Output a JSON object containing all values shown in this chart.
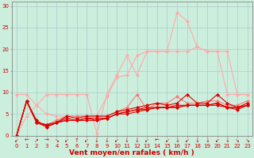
{
  "background_color": "#cceedd",
  "grid_color": "#aacccc",
  "xlabel": "Vent moyen/en rafales ( km/h )",
  "ylim": [
    0,
    31
  ],
  "yticks": [
    0,
    5,
    10,
    15,
    20,
    25,
    30
  ],
  "series": [
    {
      "color": "#ffaaaa",
      "linewidth": 0.8,
      "marker": "D",
      "markersize": 2,
      "data": [
        [
          0,
          9.5
        ],
        [
          1,
          9.5
        ],
        [
          2,
          7.0
        ],
        [
          3,
          5.0
        ],
        [
          4,
          4.5
        ],
        [
          5,
          4.5
        ],
        [
          6,
          4.5
        ],
        [
          7,
          4.5
        ],
        [
          8,
          4.5
        ],
        [
          9,
          9.0
        ],
        [
          10,
          13.5
        ],
        [
          11,
          14.0
        ],
        [
          12,
          18.5
        ],
        [
          13,
          19.5
        ],
        [
          14,
          19.5
        ],
        [
          15,
          19.5
        ],
        [
          16,
          19.5
        ],
        [
          17,
          19.5
        ],
        [
          18,
          20.5
        ],
        [
          19,
          19.5
        ],
        [
          20,
          19.5
        ],
        [
          21,
          19.5
        ],
        [
          22,
          9.5
        ],
        [
          23,
          9.5
        ]
      ]
    },
    {
      "color": "#ffaaaa",
      "linewidth": 0.8,
      "marker": "D",
      "markersize": 2,
      "data": [
        [
          0,
          0
        ],
        [
          1,
          4.5
        ],
        [
          2,
          7.0
        ],
        [
          3,
          9.5
        ],
        [
          4,
          9.5
        ],
        [
          5,
          9.5
        ],
        [
          6,
          9.5
        ],
        [
          7,
          9.5
        ],
        [
          8,
          0.5
        ],
        [
          9,
          9.5
        ],
        [
          10,
          14.0
        ],
        [
          11,
          18.5
        ],
        [
          12,
          14.0
        ],
        [
          13,
          19.5
        ],
        [
          14,
          19.5
        ],
        [
          15,
          19.5
        ],
        [
          16,
          28.5
        ],
        [
          17,
          26.5
        ],
        [
          18,
          20.5
        ],
        [
          19,
          19.5
        ],
        [
          20,
          19.5
        ],
        [
          21,
          9.5
        ],
        [
          22,
          9.5
        ],
        [
          23,
          9.5
        ]
      ]
    },
    {
      "color": "#ff7777",
      "linewidth": 0.8,
      "marker": "D",
      "markersize": 2,
      "data": [
        [
          0,
          0
        ],
        [
          1,
          8.0
        ],
        [
          2,
          3.0
        ],
        [
          3,
          2.5
        ],
        [
          4,
          3.5
        ],
        [
          5,
          4.5
        ],
        [
          6,
          4.5
        ],
        [
          7,
          4.5
        ],
        [
          8,
          4.5
        ],
        [
          9,
          4.5
        ],
        [
          10,
          5.5
        ],
        [
          11,
          6.5
        ],
        [
          12,
          9.5
        ],
        [
          13,
          6.0
        ],
        [
          14,
          7.5
        ],
        [
          15,
          7.5
        ],
        [
          16,
          9.0
        ],
        [
          17,
          7.5
        ],
        [
          18,
          7.5
        ],
        [
          19,
          8.0
        ],
        [
          20,
          8.0
        ],
        [
          21,
          7.0
        ],
        [
          22,
          7.0
        ],
        [
          23,
          8.0
        ]
      ]
    },
    {
      "color": "#dd0000",
      "linewidth": 0.8,
      "marker": "D",
      "markersize": 2,
      "data": [
        [
          0,
          0
        ],
        [
          1,
          8.0
        ],
        [
          2,
          3.5
        ],
        [
          3,
          2.0
        ],
        [
          4,
          3.0
        ],
        [
          5,
          4.5
        ],
        [
          6,
          4.0
        ],
        [
          7,
          4.5
        ],
        [
          8,
          4.5
        ],
        [
          9,
          4.5
        ],
        [
          10,
          5.5
        ],
        [
          11,
          6.0
        ],
        [
          12,
          6.5
        ],
        [
          13,
          7.0
        ],
        [
          14,
          7.5
        ],
        [
          15,
          7.0
        ],
        [
          16,
          7.5
        ],
        [
          17,
          9.5
        ],
        [
          18,
          7.5
        ],
        [
          19,
          7.5
        ],
        [
          20,
          9.5
        ],
        [
          21,
          7.5
        ],
        [
          22,
          6.5
        ],
        [
          23,
          7.5
        ]
      ]
    },
    {
      "color": "#dd0000",
      "linewidth": 0.8,
      "marker": "D",
      "markersize": 2,
      "data": [
        [
          0,
          0
        ],
        [
          1,
          8.0
        ],
        [
          2,
          3.0
        ],
        [
          3,
          2.5
        ],
        [
          4,
          3.0
        ],
        [
          5,
          4.0
        ],
        [
          6,
          3.5
        ],
        [
          7,
          4.0
        ],
        [
          8,
          4.0
        ],
        [
          9,
          4.0
        ],
        [
          10,
          5.0
        ],
        [
          11,
          5.5
        ],
        [
          12,
          6.0
        ],
        [
          13,
          6.5
        ],
        [
          14,
          6.5
        ],
        [
          15,
          6.5
        ],
        [
          16,
          7.0
        ],
        [
          17,
          7.0
        ],
        [
          18,
          7.0
        ],
        [
          19,
          7.0
        ],
        [
          20,
          7.5
        ],
        [
          21,
          6.5
        ],
        [
          22,
          6.5
        ],
        [
          23,
          7.0
        ]
      ]
    },
    {
      "color": "#dd0000",
      "linewidth": 0.8,
      "marker": "D",
      "markersize": 2,
      "data": [
        [
          0,
          0
        ],
        [
          1,
          8.0
        ],
        [
          2,
          3.0
        ],
        [
          3,
          2.5
        ],
        [
          4,
          3.0
        ],
        [
          5,
          3.5
        ],
        [
          6,
          3.5
        ],
        [
          7,
          4.0
        ],
        [
          8,
          3.5
        ],
        [
          9,
          4.0
        ],
        [
          10,
          5.0
        ],
        [
          11,
          5.5
        ],
        [
          12,
          6.0
        ],
        [
          13,
          6.0
        ],
        [
          14,
          6.5
        ],
        [
          15,
          6.5
        ],
        [
          16,
          6.5
        ],
        [
          17,
          7.0
        ],
        [
          18,
          7.0
        ],
        [
          19,
          7.0
        ],
        [
          20,
          7.0
        ],
        [
          21,
          6.5
        ],
        [
          22,
          6.5
        ],
        [
          23,
          7.0
        ]
      ]
    },
    {
      "color": "#dd0000",
      "linewidth": 0.8,
      "marker": "D",
      "markersize": 2,
      "data": [
        [
          0,
          0
        ],
        [
          1,
          8.0
        ],
        [
          2,
          3.0
        ],
        [
          3,
          2.0
        ],
        [
          4,
          3.0
        ],
        [
          5,
          3.5
        ],
        [
          6,
          3.5
        ],
        [
          7,
          3.5
        ],
        [
          8,
          3.5
        ],
        [
          9,
          4.0
        ],
        [
          10,
          5.0
        ],
        [
          11,
          5.0
        ],
        [
          12,
          5.5
        ],
        [
          13,
          6.0
        ],
        [
          14,
          6.5
        ],
        [
          15,
          6.5
        ],
        [
          16,
          6.5
        ],
        [
          17,
          7.0
        ],
        [
          18,
          7.0
        ],
        [
          19,
          7.0
        ],
        [
          20,
          7.5
        ],
        [
          21,
          6.5
        ],
        [
          22,
          6.0
        ],
        [
          23,
          7.0
        ]
      ]
    }
  ],
  "wind_arrows": [
    "↙",
    "←",
    "↗",
    "→",
    "↘",
    "↙",
    "↑",
    "↙",
    "↓",
    "↓",
    "↙",
    "↓",
    "↓",
    "↙",
    "←",
    "↙",
    "↓",
    "↙",
    "↓",
    "↓",
    "↙",
    "↓",
    "↘",
    "↘"
  ],
  "tick_fontsize": 5,
  "label_fontsize": 6.5,
  "figsize": [
    3.2,
    2.0
  ],
  "dpi": 100
}
